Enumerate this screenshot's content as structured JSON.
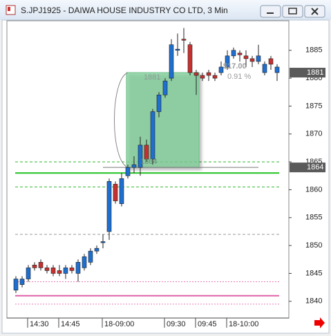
{
  "chart_data": {
    "type": "candlestick",
    "title": "S.JPJ1925 - DAIWA HOUSE INDUSTRY CO LTD, 3 Min",
    "categories": [
      null,
      null,
      "14:30",
      null,
      null,
      null,
      null,
      "14:45",
      null,
      null,
      null,
      null,
      null,
      null,
      "18-09:00",
      null,
      null,
      null,
      null,
      null,
      null,
      null,
      null,
      null,
      "09:30",
      null,
      null,
      null,
      null,
      "09:45",
      null,
      null,
      null,
      null,
      "18-10:00",
      null,
      null,
      null,
      null,
      null,
      null,
      null,
      null
    ],
    "open": [
      1842,
      1843,
      1844,
      1846.5,
      1847,
      1846,
      1846,
      1845.5,
      1845,
      1846,
      1845,
      1846,
      1847,
      1849,
      1850.5,
      1852.5,
      1861,
      1857.5,
      1862.5,
      1864,
      1864,
      1868,
      1865.5,
      1874,
      1877,
      1880,
      1885,
      1887,
      1886,
      1881,
      1880.5,
      1881,
      1880.5,
      1881,
      1882,
      1884,
      1884.5,
      1884,
      1883.5,
      1883,
      1881,
      1883.5,
      1881
    ],
    "high": [
      1844.5,
      1844.5,
      1846.5,
      1847,
      1847.5,
      1846.5,
      1846.5,
      1846.5,
      1846.5,
      1846.5,
      1847.5,
      1848.5,
      1849.5,
      1850,
      1852,
      1862,
      1861.5,
      1863,
      1864.5,
      1866,
      1869.5,
      1869,
      1874.5,
      1877.5,
      1880,
      1887,
      1888,
      1889,
      1886.5,
      1881.5,
      1881,
      1881.5,
      1881,
      1883,
      1885,
      1885.5,
      1885,
      1885,
      1884,
      1886,
      1883,
      1884,
      1882.5
    ],
    "low": [
      1841.5,
      1842.5,
      1843.5,
      1845.5,
      1845.5,
      1845,
      1844.5,
      1844.5,
      1844,
      1845,
      1843.5,
      1845.5,
      1846.5,
      1848.5,
      1849.5,
      1851,
      1857.5,
      1857,
      1862,
      1863,
      1862.5,
      1865,
      1864.5,
      1873,
      1876.5,
      1879.5,
      1884,
      1884.5,
      1880.5,
      1877,
      1879.5,
      1879.5,
      1879.5,
      1880.5,
      1881.5,
      1883.5,
      1883,
      1882,
      1882,
      1882.5,
      1880.5,
      1881.5,
      1879.5
    ],
    "close": [
      1844,
      1844,
      1846,
      1846,
      1846,
      1845.5,
      1845,
      1845,
      1846,
      1845.5,
      1847,
      1848,
      1849,
      1849.5,
      1850.7,
      1861.5,
      1858,
      1862,
      1864,
      1864.5,
      1868,
      1865.5,
      1874,
      1877,
      1879.5,
      1886,
      1885.2,
      1886.8,
      1881,
      1880.5,
      1880,
      1880.5,
      1880,
      1882,
      1884,
      1885,
      1884.2,
      1883.5,
      1883,
      1884,
      1882.5,
      1882.5,
      1882
    ],
    "up_color": "#1e6fd0",
    "down_color": "#c83030",
    "ylim": [
      1837,
      1890.3
    ],
    "yticks": [
      1840,
      1845,
      1850,
      1855,
      1860,
      1865,
      1870,
      1875,
      1880,
      1885
    ],
    "price_markers": [
      1881,
      1864
    ],
    "levels": [
      {
        "value": 1865,
        "color": "#2fb52f",
        "style": "dashed"
      },
      {
        "value": 1863,
        "color": "#1fc21f",
        "style": "solid"
      },
      {
        "value": 1860.5,
        "color": "#2fb52f",
        "style": "dashed"
      },
      {
        "value": 1852,
        "color": "#999999",
        "style": "dashed"
      },
      {
        "value": 1843.5,
        "color": "#e878b8",
        "style": "dotted"
      },
      {
        "value": 1841,
        "color": "#e060a8",
        "style": "solid"
      },
      {
        "value": 1839.5,
        "color": "#e878b8",
        "style": "dotted"
      }
    ],
    "position": {
      "entry": 1864,
      "target": 1881,
      "color": "#7fd39a",
      "profit_label": "$17.00",
      "percent_label": "0.91 %"
    }
  }
}
